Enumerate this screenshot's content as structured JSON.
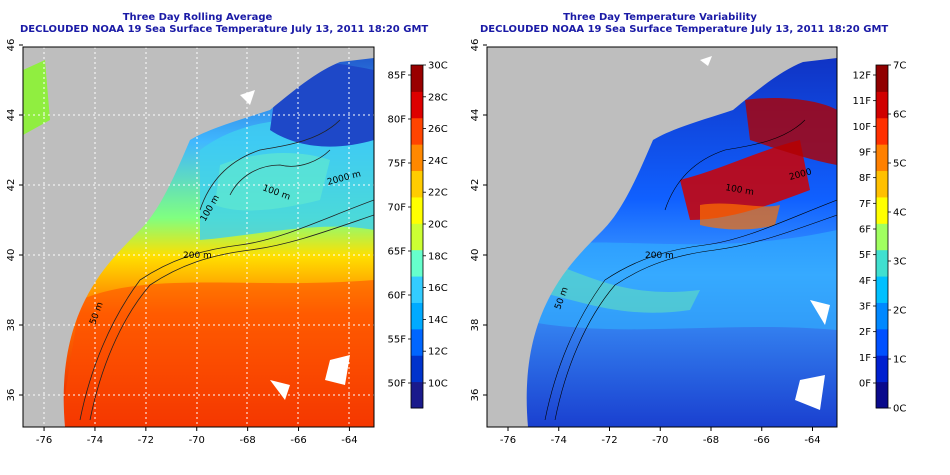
{
  "left": {
    "title": "Three Day Rolling Average",
    "subtitle": "DECLOUDED NOAA 19 Sea Surface Temperature July 13, 2011 18:20 GMT",
    "lon_ticks": [
      "-76",
      "-74",
      "-72",
      "-70",
      "-68",
      "-66",
      "-64"
    ],
    "lat_ticks": [
      "36",
      "38",
      "40",
      "42",
      "44",
      "46"
    ],
    "contours": [
      "50 m",
      "200 m",
      "100 m",
      "100 m",
      "2000 m"
    ],
    "colorbar": {
      "colors": [
        "#1a1a8c",
        "#0033cc",
        "#0066ff",
        "#00aaff",
        "#33ccff",
        "#66ffcc",
        "#ccff33",
        "#ffff00",
        "#ffcc00",
        "#ff8800",
        "#ff4400",
        "#dd0000",
        "#990000"
      ],
      "f_labels": [
        "50F",
        "55F",
        "60F",
        "65F",
        "70F",
        "75F",
        "80F",
        "85F"
      ],
      "c_labels": [
        "10C",
        "12C",
        "14C",
        "16C",
        "18C",
        "20C",
        "22C",
        "24C",
        "26C",
        "28C",
        "30C"
      ]
    }
  },
  "right": {
    "title": "Three Day Temperature Variability",
    "subtitle": "DECLOUDED NOAA 19 Sea Surface Temperature July 13, 2011 18:20 GMT",
    "lon_ticks": [
      "-76",
      "-74",
      "-72",
      "-70",
      "-68",
      "-66",
      "-64"
    ],
    "lat_ticks": [
      "36",
      "38",
      "40",
      "42",
      "44",
      "46"
    ],
    "contours": [
      "50 m",
      "200 m",
      "100 m",
      "2000"
    ],
    "colorbar": {
      "colors": [
        "#0a0a8c",
        "#0020d0",
        "#0050ff",
        "#0088ff",
        "#00c0ff",
        "#40e0d0",
        "#a0ff60",
        "#ffff00",
        "#ffc000",
        "#ff8000",
        "#ff3000",
        "#d00000",
        "#900000"
      ],
      "f_labels": [
        "0F",
        "1F",
        "2F",
        "3F",
        "4F",
        "5F",
        "6F",
        "7F",
        "8F",
        "9F",
        "10F",
        "11F",
        "12F"
      ],
      "c_labels": [
        "0C",
        "1C",
        "2C",
        "3C",
        "4C",
        "5C",
        "6C",
        "7C"
      ]
    }
  }
}
